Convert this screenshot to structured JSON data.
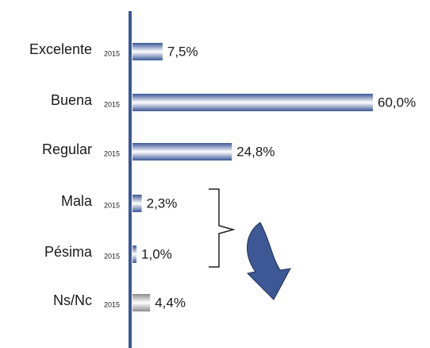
{
  "chart_data": {
    "type": "bar",
    "orientation": "horizontal",
    "categories": [
      "Excelente",
      "Buena",
      "Regular",
      "Mala",
      "Pésima",
      "Ns/Nc"
    ],
    "series": [
      {
        "name": "2015",
        "colors": [
          "#3b5797",
          "#3b5797",
          "#3b5797",
          "#3b5797",
          "#3b5797",
          "#8c8c8c"
        ],
        "values": [
          7.5,
          60.0,
          24.8,
          2.3,
          1.0,
          4.4
        ],
        "value_labels": [
          "7,5%",
          "60,0%",
          "24,8%",
          "2,3%",
          "1,0%",
          "4,4%"
        ]
      }
    ]
  }
}
